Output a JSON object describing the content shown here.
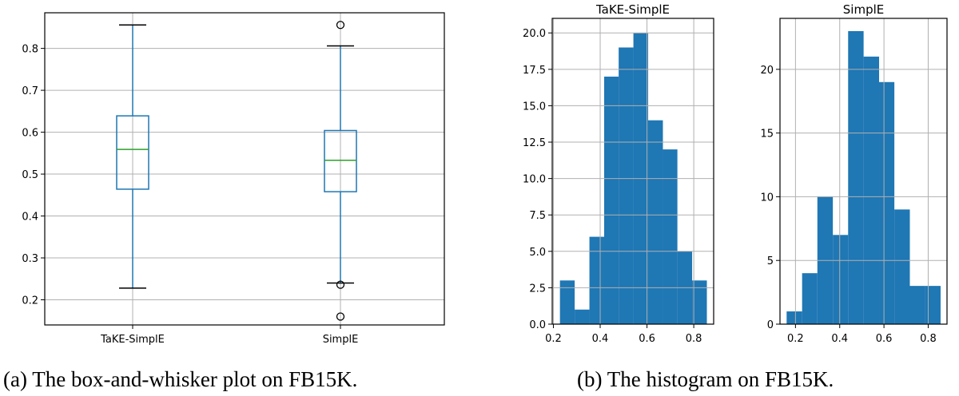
{
  "captions": {
    "a": "(a)  The box-and-whisker plot on FB15K.",
    "b": "(b)  The histogram on FB15K."
  },
  "colors": {
    "box": "#1f77b4",
    "median": "#2ca02c",
    "bar": "#1f77b4",
    "grid": "#b0b0b0"
  },
  "chart_data": [
    {
      "type": "box",
      "grid": true,
      "ylim": [
        0.14,
        0.885
      ],
      "yticks": [
        "0.2",
        "0.3",
        "0.4",
        "0.5",
        "0.6",
        "0.7",
        "0.8"
      ],
      "categories": [
        "TaKE-SimplE",
        "SimplE"
      ],
      "boxes": [
        {
          "name": "TaKE-SimplE",
          "whisker_low": 0.228,
          "q1": 0.464,
          "median": 0.559,
          "q3": 0.639,
          "whisker_high": 0.856,
          "outliers": []
        },
        {
          "name": "SimplE",
          "whisker_low": 0.24,
          "q1": 0.458,
          "median": 0.533,
          "q3": 0.604,
          "whisker_high": 0.806,
          "outliers": [
            0.856,
            0.236,
            0.16
          ]
        }
      ]
    },
    {
      "type": "histogram",
      "title": "TaKE-SimplE",
      "grid": true,
      "xlim": [
        0.195,
        0.885
      ],
      "ylim": [
        0,
        21.0
      ],
      "xticks": [
        "0.2",
        "0.4",
        "0.6",
        "0.8"
      ],
      "yticks": [
        "0.0",
        "2.5",
        "5.0",
        "7.5",
        "10.0",
        "12.5",
        "15.0",
        "17.5",
        "20.0"
      ],
      "bin_edges": [
        0.228,
        0.291,
        0.354,
        0.417,
        0.479,
        0.542,
        0.605,
        0.668,
        0.73,
        0.793,
        0.856
      ],
      "counts": [
        3,
        1,
        6,
        17,
        19,
        20,
        14,
        12,
        5,
        3
      ]
    },
    {
      "type": "histogram",
      "title": "SimplE",
      "grid": true,
      "xlim": [
        0.13,
        0.885
      ],
      "ylim": [
        0,
        24.0
      ],
      "xticks": [
        "0.2",
        "0.4",
        "0.6",
        "0.8"
      ],
      "yticks": [
        "0",
        "5",
        "10",
        "15",
        "20"
      ],
      "bin_edges": [
        0.16,
        0.23,
        0.299,
        0.369,
        0.438,
        0.508,
        0.578,
        0.647,
        0.717,
        0.786,
        0.856
      ],
      "counts": [
        1,
        4,
        10,
        7,
        23,
        21,
        19,
        9,
        3,
        3
      ]
    }
  ]
}
